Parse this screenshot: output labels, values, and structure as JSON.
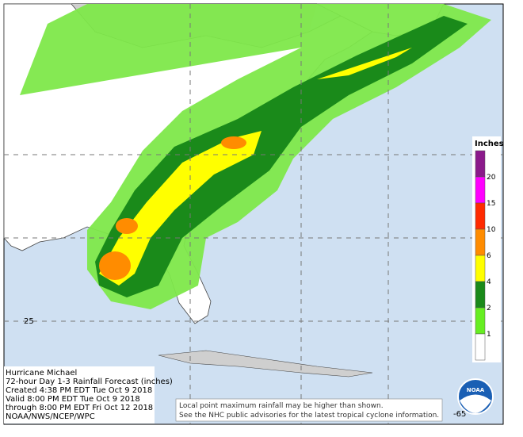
{
  "header": {
    "lines": [
      "Hurricane Michael",
      "72-hour Day 1-3 Rainfall Forecast (inches)",
      "Created 4:38 PM EDT Tue Oct 9 2018",
      "Valid 8:00 PM EDT Tue Oct 9 2018",
      "through 8:00 PM EDT Fri Oct 12 2018",
      "NOAA/NWS/NCEP/WPC"
    ]
  },
  "disclaimer": {
    "lines": [
      "Local point maximum rainfall may be higher than shown.",
      "See the NHC public advisories for the latest tropical cyclone information."
    ]
  },
  "legend": {
    "title": "Inches",
    "levels": [
      {
        "label": "20",
        "color": "#8b1a8b"
      },
      {
        "label": "15",
        "color": "#ff00ff"
      },
      {
        "label": "10",
        "color": "#ff2a00"
      },
      {
        "label": "6",
        "color": "#ff8c00"
      },
      {
        "label": "4",
        "color": "#ffff00"
      },
      {
        "label": "2",
        "color": "#1a8a1a"
      },
      {
        "label": "1",
        "color": "#66ee22"
      },
      {
        "label": null,
        "color": "#ffffff"
      }
    ]
  },
  "grid_labels": {
    "latitude": "25",
    "longitude": "-65"
  },
  "logo": {
    "text": "NOAA"
  }
}
